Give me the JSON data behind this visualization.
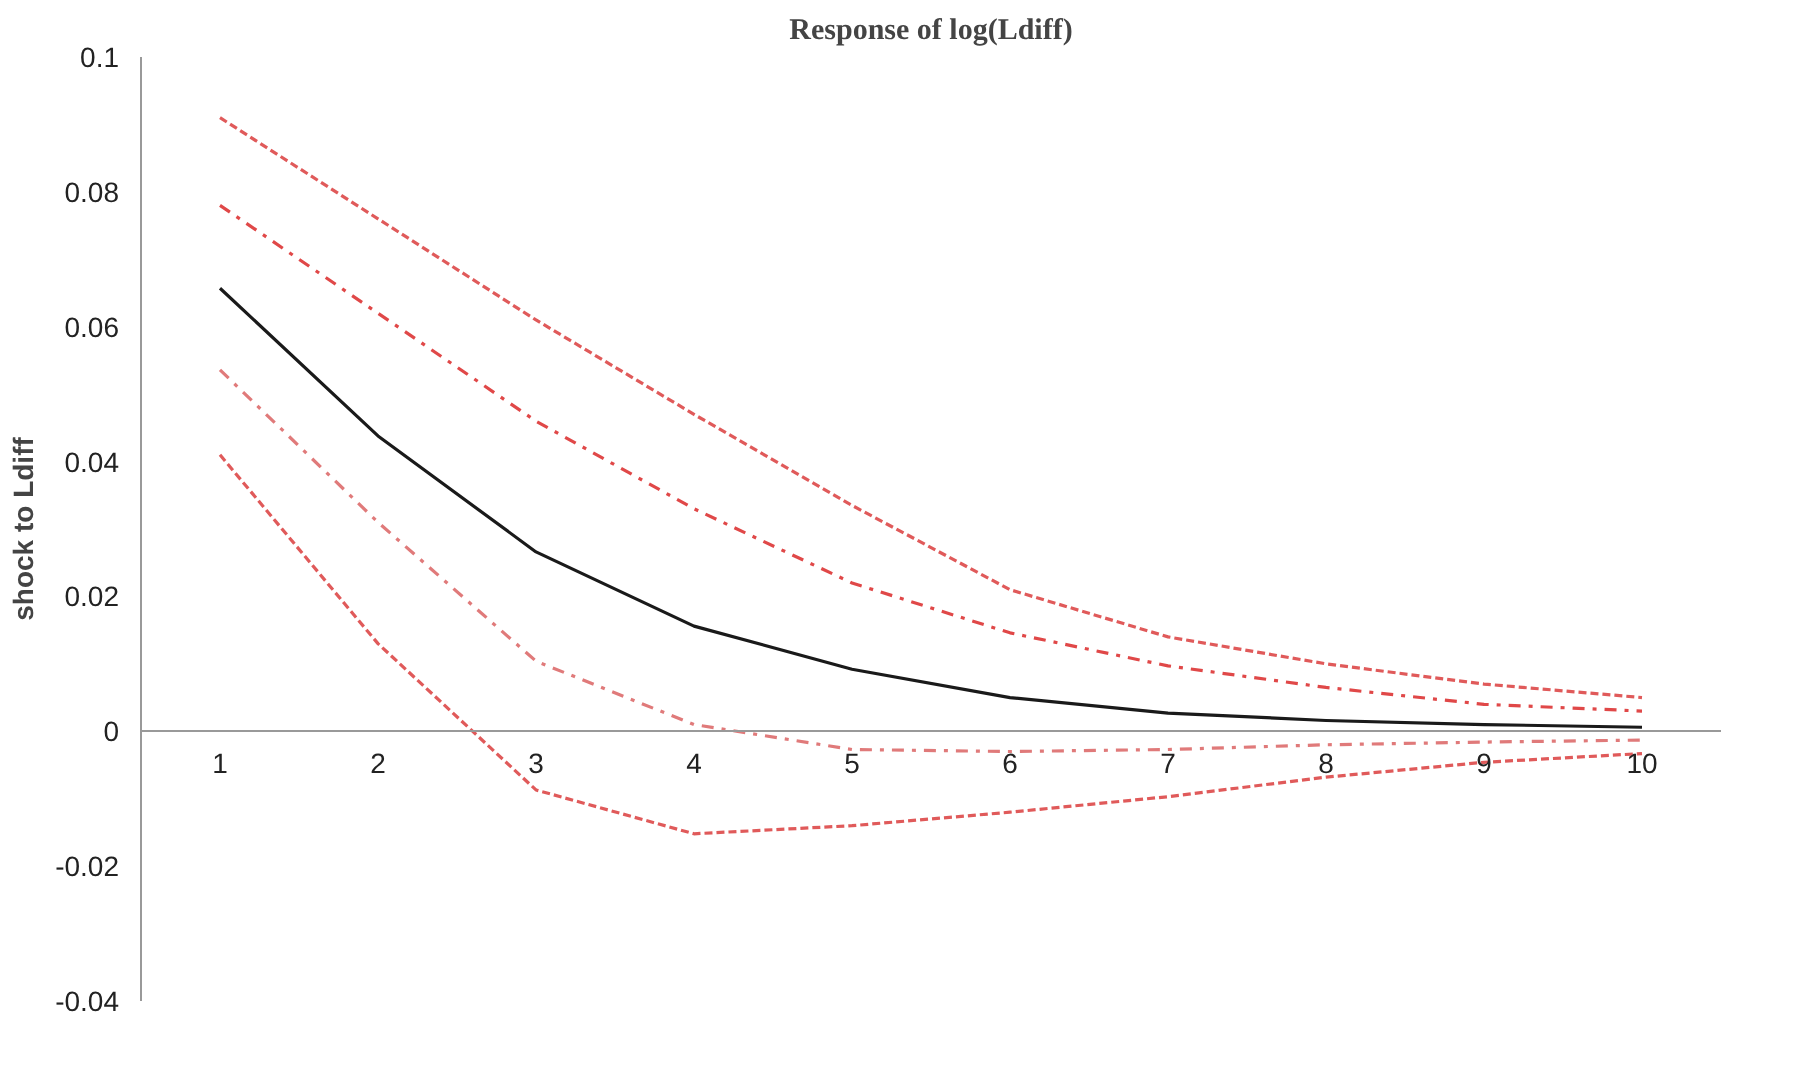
{
  "chart_data": {
    "type": "line",
    "title": "Response of log(Ldiff)",
    "ylabel": "shock to Ldiff",
    "x": [
      1,
      2,
      3,
      4,
      5,
      6,
      7,
      8,
      9,
      10
    ],
    "xlim": [
      0.5,
      10.5
    ],
    "xticks": [
      1,
      2,
      3,
      4,
      5,
      6,
      7,
      8,
      9,
      10
    ],
    "ylim": [
      -0.04,
      0.1
    ],
    "yticks": [
      -0.04,
      -0.02,
      0,
      0.02,
      0.04,
      0.06,
      0.08,
      0.1
    ],
    "grid": false,
    "marker": "none",
    "series": [
      {
        "color": "#e05a5a",
        "line_style": "dashed",
        "values": [
          0.091,
          0.076,
          0.061,
          0.047,
          0.0335,
          0.021,
          0.014,
          0.01,
          0.007,
          0.005
        ]
      },
      {
        "color": "#e04848",
        "line_style": "dashdot",
        "values": [
          0.078,
          0.062,
          0.046,
          0.033,
          0.022,
          0.0146,
          0.0097,
          0.0065,
          0.004,
          0.003
        ]
      },
      {
        "color": "#1a1a1a",
        "line_style": "solid",
        "values": [
          0.0657,
          0.0438,
          0.0266,
          0.0156,
          0.0092,
          0.005,
          0.0027,
          0.0016,
          0.001,
          0.0006
        ]
      },
      {
        "color": "#e07a7a",
        "line_style": "dashdot",
        "values": [
          0.0536,
          0.031,
          0.0104,
          0.001,
          -0.0027,
          -0.003,
          -0.0027,
          -0.002,
          -0.0016,
          -0.0013
        ]
      },
      {
        "color": "#e05a5a",
        "line_style": "dashed",
        "values": [
          0.041,
          0.013,
          -0.0087,
          -0.0152,
          -0.014,
          -0.012,
          -0.0097,
          -0.0068,
          -0.0046,
          -0.0033
        ]
      }
    ]
  }
}
